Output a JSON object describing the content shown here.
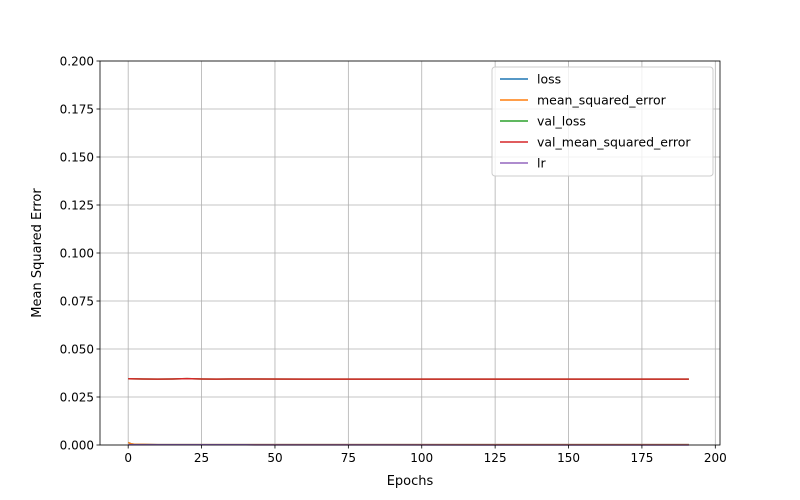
{
  "chart_data": {
    "type": "line",
    "title": "",
    "xlabel": "Epochs",
    "ylabel": "Mean Squared Error",
    "xlim": [
      -9.6,
      201.6
    ],
    "ylim": [
      0,
      0.2
    ],
    "xticks": [
      0,
      25,
      50,
      75,
      100,
      125,
      150,
      175,
      200
    ],
    "xtick_labels": [
      "0",
      "25",
      "50",
      "75",
      "100",
      "125",
      "150",
      "175",
      "200"
    ],
    "yticks": [
      0,
      0.025,
      0.05,
      0.075,
      0.1,
      0.125,
      0.15,
      0.175,
      0.2
    ],
    "ytick_labels": [
      "0.000",
      "0.025",
      "0.050",
      "0.075",
      "0.100",
      "0.125",
      "0.150",
      "0.175",
      "0.200"
    ],
    "grid": true,
    "legend_position": "top-right",
    "series": [
      {
        "name": "loss",
        "color": "#1f77b4",
        "x": [
          0,
          1,
          2,
          5,
          10,
          20,
          40,
          80,
          120,
          160,
          191
        ],
        "y": [
          0.0013,
          0.0006,
          0.0004,
          0.0003,
          0.0002,
          0.0002,
          0.0002,
          0.0002,
          0.0002,
          0.0002,
          0.0002
        ]
      },
      {
        "name": "mean_squared_error",
        "color": "#ff7f0e",
        "x": [
          0,
          1,
          2,
          5,
          10,
          20,
          40,
          80,
          120,
          160,
          191
        ],
        "y": [
          0.0013,
          0.0006,
          0.0004,
          0.0003,
          0.0002,
          0.0002,
          0.0002,
          0.0002,
          0.0002,
          0.0002,
          0.0002
        ]
      },
      {
        "name": "val_loss",
        "color": "#2ca02c",
        "x": [
          0,
          5,
          10,
          15,
          20,
          25,
          30,
          35,
          40,
          60,
          80,
          100,
          120,
          140,
          160,
          180,
          191
        ],
        "y": [
          0.0345,
          0.0344,
          0.0343,
          0.0344,
          0.0346,
          0.0344,
          0.0343,
          0.0344,
          0.0344,
          0.0343,
          0.0343,
          0.0343,
          0.0343,
          0.0343,
          0.0343,
          0.0343,
          0.0343
        ]
      },
      {
        "name": "val_mean_squared_error",
        "color": "#d62728",
        "x": [
          0,
          5,
          10,
          15,
          20,
          25,
          30,
          35,
          40,
          60,
          80,
          100,
          120,
          140,
          160,
          180,
          191
        ],
        "y": [
          0.0345,
          0.0344,
          0.0343,
          0.0344,
          0.0346,
          0.0344,
          0.0343,
          0.0344,
          0.0344,
          0.0343,
          0.0343,
          0.0343,
          0.0343,
          0.0343,
          0.0343,
          0.0343,
          0.0343
        ]
      },
      {
        "name": "lr",
        "color": "#9467bd",
        "x": [
          0,
          40,
          80,
          120,
          160,
          191
        ],
        "y": [
          0.0001,
          0.0001,
          5e-05,
          2e-05,
          1e-05,
          1e-05
        ]
      }
    ]
  }
}
